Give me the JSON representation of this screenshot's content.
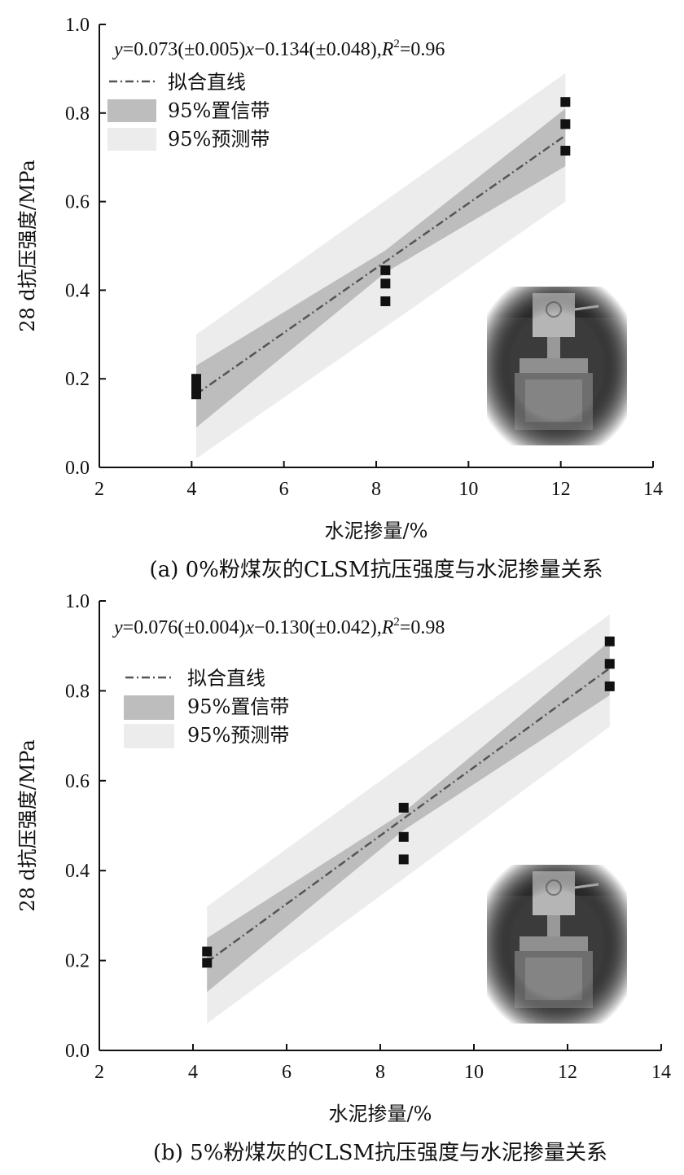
{
  "chart_data": [
    {
      "type": "scatter",
      "panel": "a",
      "caption": "(a) 0%粉煤灰的CLSM抗压强度与水泥掺量关系",
      "equation": "y=0.073(±0.005)x−0.134(±0.048),R²=0.96",
      "equation_parts": {
        "y": "y",
        "mid1": "=0.073(±0.005)",
        "x": "x",
        "mid2": "−0.134(±0.048),",
        "R": "R",
        "sup": "2",
        "tail": "=0.96"
      },
      "xlabel": "水泥掺量/%",
      "ylabel": "28 d抗压强度/MPa",
      "xlim": [
        2,
        14
      ],
      "ylim": [
        0,
        1.0
      ],
      "xticks": [
        2,
        4,
        6,
        8,
        10,
        12,
        14
      ],
      "yticks": [
        0.0,
        0.2,
        0.4,
        0.6,
        0.8,
        1.0
      ],
      "xtick_labels": [
        "2",
        "4",
        "6",
        "8",
        "10",
        "12",
        "14"
      ],
      "ytick_labels": [
        "0.0",
        "0.2",
        "0.4",
        "0.6",
        "0.8",
        "1.0"
      ],
      "fit": {
        "slope": 0.073,
        "intercept": -0.134,
        "x_range": [
          4.1,
          12.1
        ]
      },
      "confidence_band": {
        "x": [
          4.1,
          8.2,
          12.1
        ],
        "lower": [
          0.09,
          0.44,
          0.68
        ],
        "upper": [
          0.23,
          0.49,
          0.81
        ]
      },
      "prediction_band": {
        "x": [
          4.1,
          12.1
        ],
        "lower": [
          0.02,
          0.6
        ],
        "upper": [
          0.3,
          0.89
        ]
      },
      "points": [
        {
          "x": 4.1,
          "y": 0.165
        },
        {
          "x": 4.1,
          "y": 0.18
        },
        {
          "x": 4.1,
          "y": 0.2
        },
        {
          "x": 8.2,
          "y": 0.375
        },
        {
          "x": 8.2,
          "y": 0.415
        },
        {
          "x": 8.2,
          "y": 0.445
        },
        {
          "x": 12.1,
          "y": 0.715
        },
        {
          "x": 12.1,
          "y": 0.775
        },
        {
          "x": 12.1,
          "y": 0.825
        }
      ],
      "legend": {
        "position": "top-left",
        "entries": [
          "拟合直线",
          "95%置信带",
          "95%预测带"
        ]
      }
    },
    {
      "type": "scatter",
      "panel": "b",
      "caption": "(b) 5%粉煤灰的CLSM抗压强度与水泥掺量关系",
      "equation": "y=0.076(±0.004)x−0.130(±0.042),R²=0.98",
      "equation_parts": {
        "y": "y",
        "mid1": "=0.076(±0.004)",
        "x": "x",
        "mid2": "−0.130(±0.042),",
        "R": "R",
        "sup": "2",
        "tail": "=0.98"
      },
      "xlabel": "水泥掺量/%",
      "ylabel": "28 d抗压强度/MPa",
      "xlim": [
        2,
        14
      ],
      "ylim": [
        0,
        1.0
      ],
      "xticks": [
        2,
        4,
        6,
        8,
        10,
        12,
        14
      ],
      "yticks": [
        0.0,
        0.2,
        0.4,
        0.6,
        0.8,
        1.0
      ],
      "xtick_labels": [
        "2",
        "4",
        "6",
        "8",
        "10",
        "12",
        "14"
      ],
      "ytick_labels": [
        "0.0",
        "0.2",
        "0.4",
        "0.6",
        "0.8",
        "1.0"
      ],
      "fit": {
        "slope": 0.076,
        "intercept": -0.13,
        "x_range": [
          4.3,
          12.9
        ]
      },
      "confidence_band": {
        "x": [
          4.3,
          8.5,
          12.9
        ],
        "lower": [
          0.13,
          0.49,
          0.79
        ],
        "upper": [
          0.25,
          0.53,
          0.91
        ]
      },
      "prediction_band": {
        "x": [
          4.3,
          12.9
        ],
        "lower": [
          0.06,
          0.72
        ],
        "upper": [
          0.32,
          0.97
        ]
      },
      "points": [
        {
          "x": 4.3,
          "y": 0.195
        },
        {
          "x": 4.3,
          "y": 0.22
        },
        {
          "x": 8.5,
          "y": 0.425
        },
        {
          "x": 8.5,
          "y": 0.475
        },
        {
          "x": 8.5,
          "y": 0.54
        },
        {
          "x": 12.9,
          "y": 0.81
        },
        {
          "x": 12.9,
          "y": 0.86
        },
        {
          "x": 12.9,
          "y": 0.91
        }
      ],
      "legend": {
        "position": "top-left",
        "entries": [
          "拟合直线",
          "95%置信带",
          "95%预测带"
        ]
      }
    }
  ],
  "colors": {
    "fit_line": "#555555",
    "confidence_band": "#bdbdbd",
    "prediction_band": "#ececec",
    "points": "#111111",
    "axes": "#111111"
  },
  "inset_photo_icon": "compression-test-apparatus-photo"
}
